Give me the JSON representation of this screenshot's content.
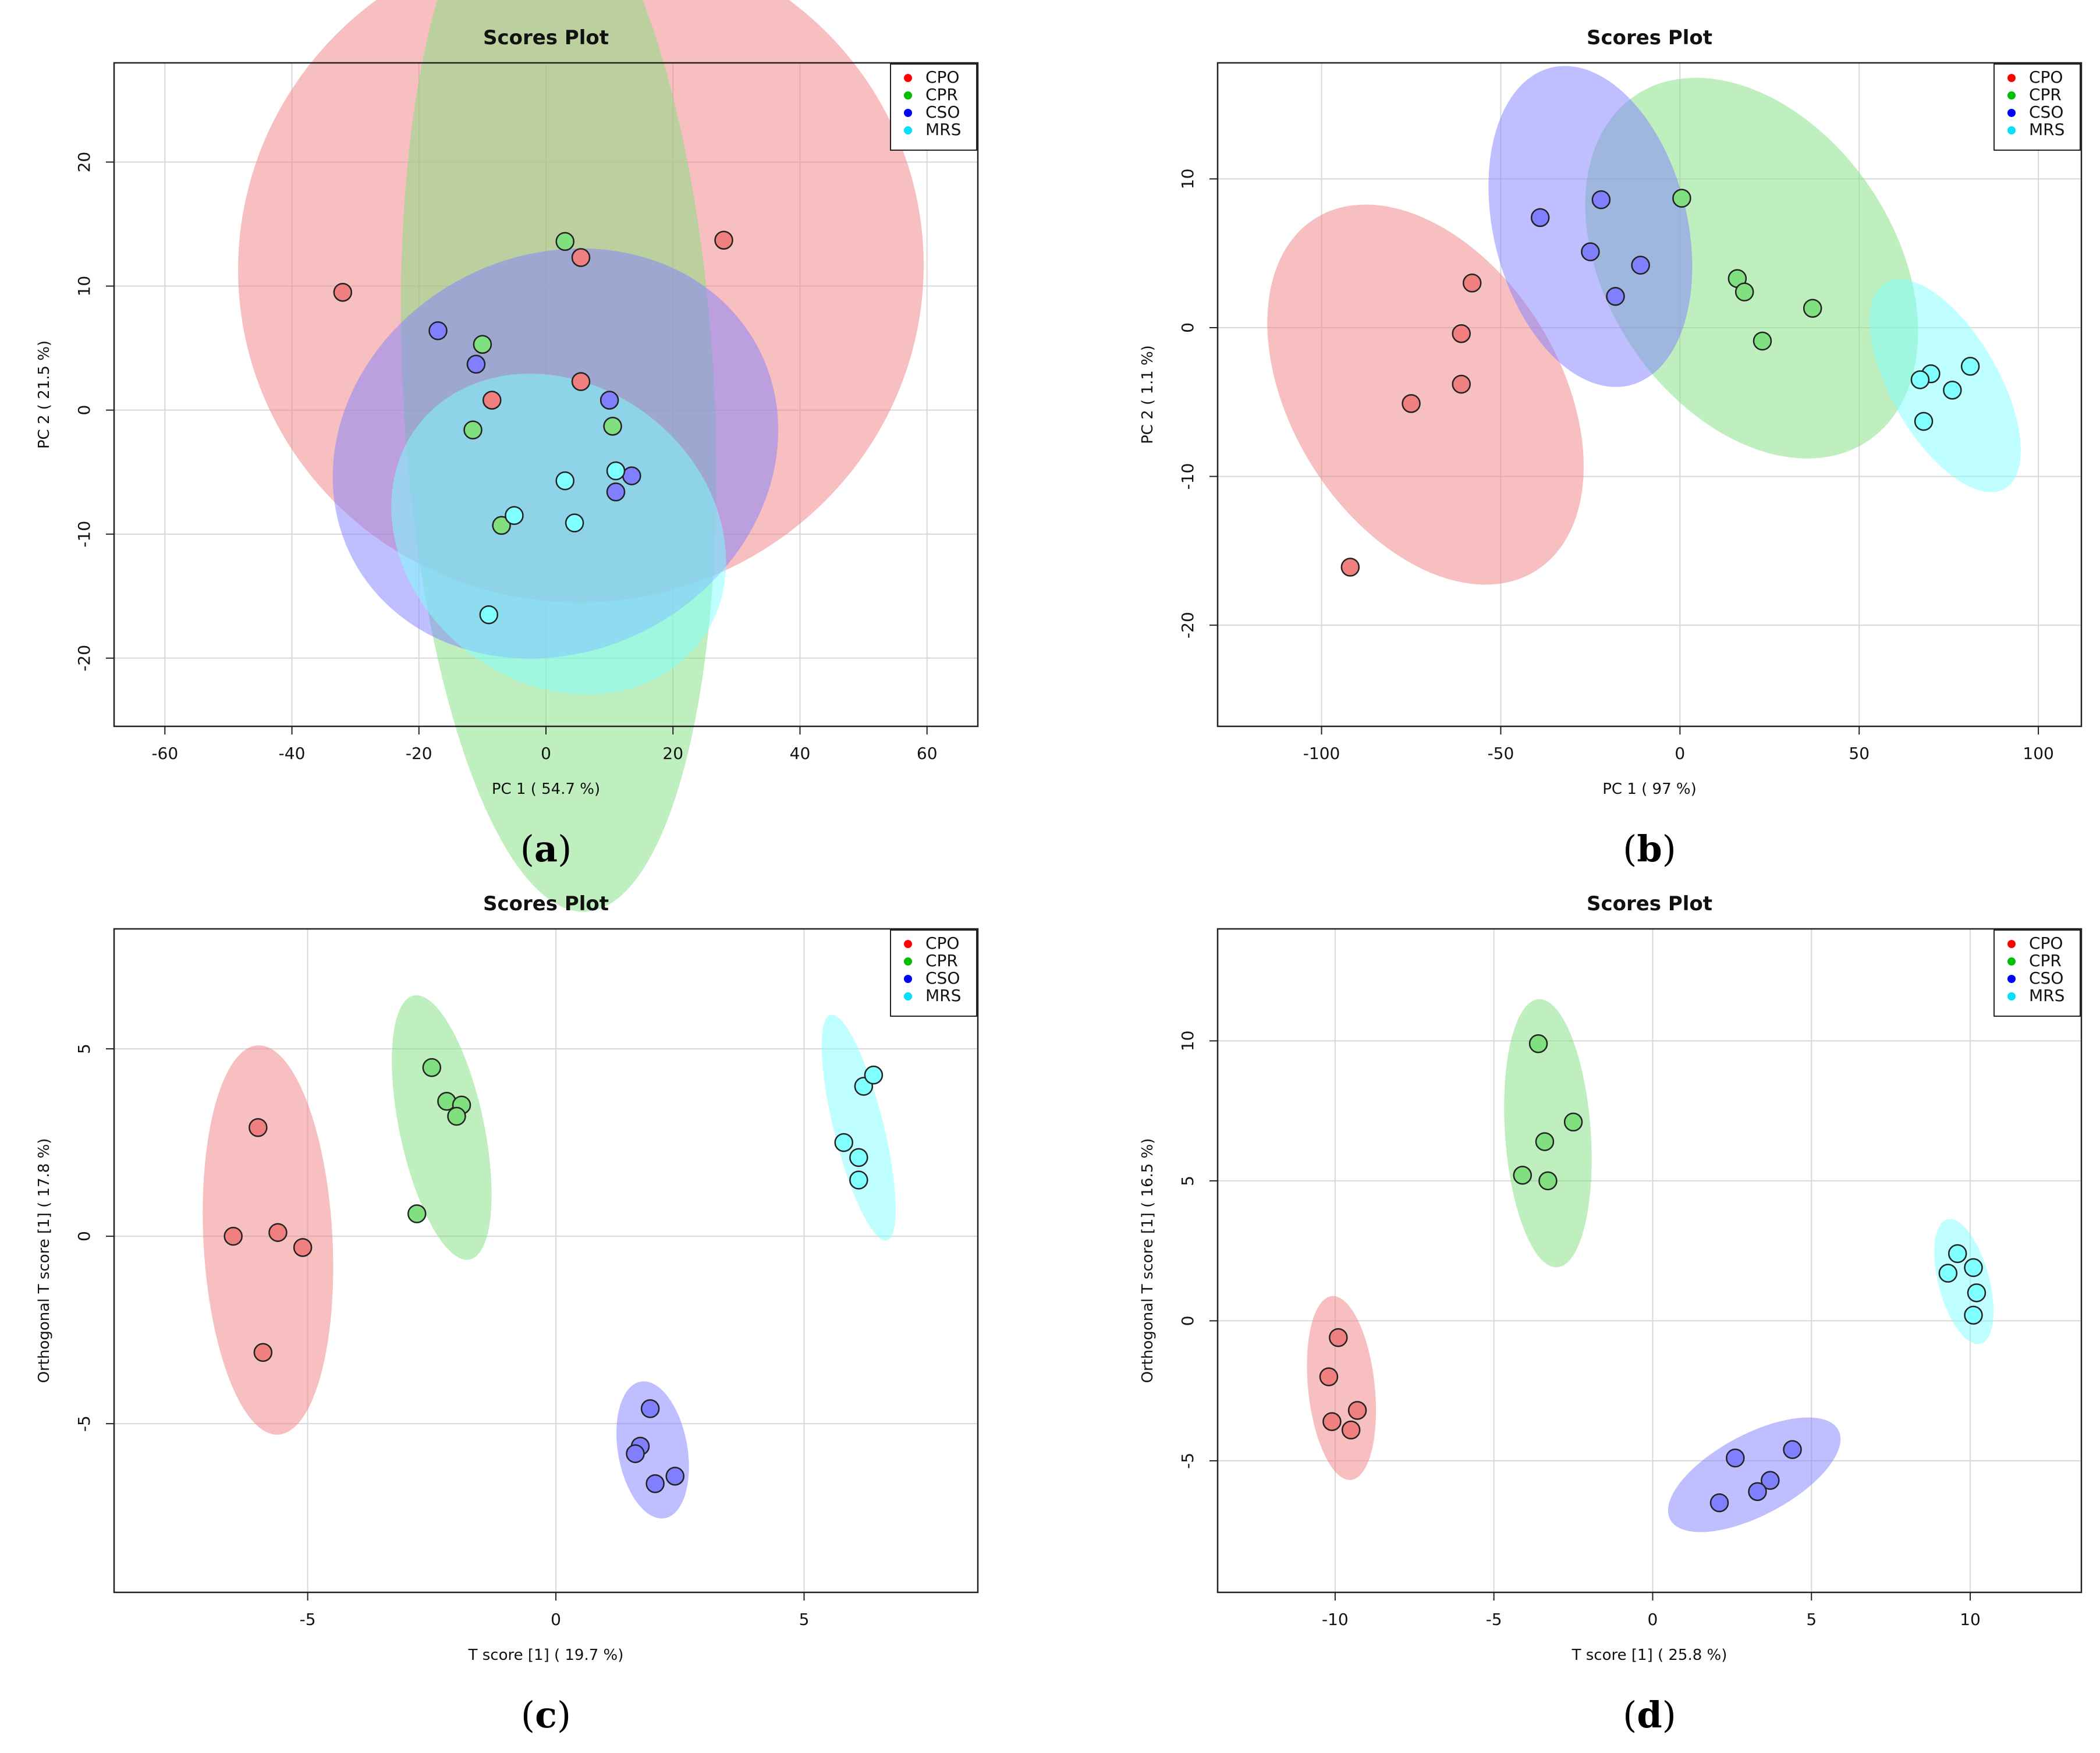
{
  "chart_data": [
    {
      "panel_label": "a",
      "type": "scatter",
      "title": "Scores Plot",
      "xlabel": "PC 1 ( 54.7 %)",
      "ylabel": "PC 2 ( 21.5 %)",
      "xlim": [
        -68,
        68
      ],
      "ylim": [
        -25.5,
        28
      ],
      "xticks": [
        -60,
        -40,
        -20,
        0,
        20,
        40,
        60
      ],
      "yticks": [
        -20,
        -10,
        0,
        10,
        20
      ],
      "grid": true,
      "legend_position": "top-right",
      "series": [
        {
          "name": "CPO",
          "color": "#ff0000",
          "fill": "#f08080",
          "points": [
            [
              -32,
              9.5
            ],
            [
              5.5,
              12.3
            ],
            [
              28,
              13.7
            ],
            [
              -8.5,
              0.8
            ],
            [
              5.5,
              2.3
            ]
          ],
          "ellipse": {
            "cx": 5.5,
            "cy": 11.5,
            "rx": 54,
            "ry": 27,
            "angle": -8
          }
        },
        {
          "name": "CPR",
          "color": "#00c000",
          "fill": "#80e080",
          "points": [
            [
              3,
              13.6
            ],
            [
              -10,
              5.3
            ],
            [
              -11.5,
              -1.6
            ],
            [
              10.5,
              -1.3
            ],
            [
              -7,
              -9.3
            ]
          ],
          "ellipse": {
            "cx": 2,
            "cy": 1.5,
            "rx": 24.5,
            "ry": 42,
            "angle": -3
          }
        },
        {
          "name": "CSO",
          "color": "#0000ff",
          "fill": "#8080ff",
          "points": [
            [
              -17,
              6.4
            ],
            [
              -11,
              3.7
            ],
            [
              10,
              0.8
            ],
            [
              13.5,
              -5.3
            ],
            [
              11,
              -6.6
            ]
          ],
          "ellipse": {
            "cx": 1.5,
            "cy": -3.5,
            "rx": 36,
            "ry": 16,
            "angle": -27
          }
        },
        {
          "name": "MRS",
          "color": "#00e0ff",
          "fill": "#80ffff",
          "points": [
            [
              3,
              -5.7
            ],
            [
              11,
              -4.9
            ],
            [
              -5,
              -8.5
            ],
            [
              4.5,
              -9.1
            ],
            [
              -9,
              -16.5
            ]
          ],
          "ellipse": {
            "cx": 2,
            "cy": -10,
            "rx": 28,
            "ry": 12,
            "angle": 38
          }
        }
      ]
    },
    {
      "panel_label": "b",
      "type": "scatter",
      "title": "Scores Plot",
      "xlabel": "PC 1 ( 97 %)",
      "ylabel": "PC 2 ( 1.1 %)",
      "xlim": [
        -129,
        112
      ],
      "ylim": [
        -26.8,
        17.8
      ],
      "xticks": [
        -100,
        -50,
        0,
        50,
        100
      ],
      "yticks": [
        -20,
        -10,
        0,
        10
      ],
      "grid": true,
      "legend_position": "top-right",
      "series": [
        {
          "name": "CPO",
          "color": "#ff0000",
          "fill": "#f08080",
          "points": [
            [
              -58,
              3
            ],
            [
              -61,
              -0.4
            ],
            [
              -61,
              -3.8
            ],
            [
              -75,
              -5.1
            ],
            [
              -92,
              -16.1
            ]
          ],
          "ellipse": {
            "cx": -71,
            "cy": -4.5,
            "rx": 58,
            "ry": 9,
            "angle": 58
          }
        },
        {
          "name": "CPR",
          "color": "#00c000",
          "fill": "#80e080",
          "points": [
            [
              0.5,
              8.7
            ],
            [
              16,
              3.3
            ],
            [
              18,
              2.4
            ],
            [
              37,
              1.3
            ],
            [
              23,
              -0.9
            ]
          ],
          "ellipse": {
            "cx": 20,
            "cy": 4,
            "rx": 40,
            "ry": 14,
            "angle": -34
          }
        },
        {
          "name": "CSO",
          "color": "#0000ff",
          "fill": "#8080ff",
          "points": [
            [
              -39,
              7.4
            ],
            [
              -22,
              8.6
            ],
            [
              -25,
              5.1
            ],
            [
              -11,
              4.2
            ],
            [
              -18,
              2.1
            ]
          ],
          "ellipse": {
            "cx": -25,
            "cy": 6.8,
            "rx": 27,
            "ry": 11,
            "angle": -14
          }
        },
        {
          "name": "MRS",
          "color": "#00e0ff",
          "fill": "#80ffff",
          "points": [
            [
              70,
              -3.1
            ],
            [
              81,
              -2.6
            ],
            [
              67,
              -3.5
            ],
            [
              76,
              -4.2
            ],
            [
              68,
              -6.3
            ]
          ],
          "ellipse": {
            "cx": 74,
            "cy": -3.9,
            "rx": 15,
            "ry": 8,
            "angle": -30
          }
        }
      ]
    },
    {
      "panel_label": "c",
      "type": "scatter",
      "title": "Scores Plot",
      "xlabel": "T score [1] ( 19.7 %)",
      "ylabel": "Orthogonal T score [1] ( 17.8 %)",
      "xlim": [
        -8.9,
        8.5
      ],
      "ylim": [
        -9.5,
        8.2
      ],
      "xticks": [
        -5,
        0,
        5
      ],
      "yticks": [
        -5,
        0,
        5
      ],
      "grid": true,
      "legend_position": "top-right",
      "series": [
        {
          "name": "CPO",
          "color": "#ff0000",
          "fill": "#f08080",
          "points": [
            [
              -6,
              2.9
            ],
            [
              -6.5,
              0
            ],
            [
              -5.6,
              0.1
            ],
            [
              -5.1,
              -0.3
            ],
            [
              -5.9,
              -3.1
            ]
          ],
          "ellipse": {
            "cx": -5.8,
            "cy": -0.1,
            "rx": 1.3,
            "ry": 5.2,
            "angle": -3
          }
        },
        {
          "name": "CPR",
          "color": "#00c000",
          "fill": "#80e080",
          "points": [
            [
              -2.5,
              4.5
            ],
            [
              -2.2,
              3.6
            ],
            [
              -1.9,
              3.5
            ],
            [
              -2,
              3.2
            ],
            [
              -2.8,
              0.6
            ]
          ],
          "ellipse": {
            "cx": -2.3,
            "cy": 2.9,
            "rx": 0.85,
            "ry": 3.6,
            "angle": -12
          }
        },
        {
          "name": "CSO",
          "color": "#0000ff",
          "fill": "#8080ff",
          "points": [
            [
              1.9,
              -4.6
            ],
            [
              1.7,
              -5.6
            ],
            [
              1.6,
              -5.8
            ],
            [
              2,
              -6.6
            ],
            [
              2.4,
              -6.4
            ]
          ],
          "ellipse": {
            "cx": 1.95,
            "cy": -5.7,
            "rx": 0.7,
            "ry": 1.85,
            "angle": -10
          }
        },
        {
          "name": "MRS",
          "color": "#00e0ff",
          "fill": "#80ffff",
          "points": [
            [
              6.2,
              4
            ],
            [
              6.4,
              4.3
            ],
            [
              5.8,
              2.5
            ],
            [
              6.1,
              2.1
            ],
            [
              6.1,
              1.5
            ]
          ],
          "ellipse": {
            "cx": 6.1,
            "cy": 2.9,
            "rx": 0.5,
            "ry": 3.1,
            "angle": -14
          }
        }
      ]
    },
    {
      "panel_label": "d",
      "type": "scatter",
      "title": "Scores Plot",
      "xlabel": "T score [1] ( 25.8 %)",
      "ylabel": "Orthogonal T score [1] ( 16.5 %)",
      "xlim": [
        -13.7,
        13.5
      ],
      "ylim": [
        -9.7,
        14
      ],
      "xticks": [
        -10,
        -5,
        0,
        5,
        10
      ],
      "yticks": [
        -5,
        0,
        5,
        10
      ],
      "grid": true,
      "legend_position": "top-right",
      "series": [
        {
          "name": "CPO",
          "color": "#ff0000",
          "fill": "#f08080",
          "points": [
            [
              -9.9,
              -0.6
            ],
            [
              -10.2,
              -2
            ],
            [
              -10.1,
              -3.6
            ],
            [
              -9.3,
              -3.2
            ],
            [
              -9.5,
              -3.9
            ]
          ],
          "ellipse": {
            "cx": -9.8,
            "cy": -2.4,
            "rx": 1.05,
            "ry": 3.3,
            "angle": -6
          }
        },
        {
          "name": "CPR",
          "color": "#00c000",
          "fill": "#80e080",
          "points": [
            [
              -3.6,
              9.9
            ],
            [
              -2.5,
              7.1
            ],
            [
              -3.4,
              6.4
            ],
            [
              -4.1,
              5.2
            ],
            [
              -3.3,
              5
            ]
          ],
          "ellipse": {
            "cx": -3.3,
            "cy": 6.7,
            "rx": 1.35,
            "ry": 4.8,
            "angle": -4
          }
        },
        {
          "name": "CSO",
          "color": "#0000ff",
          "fill": "#8080ff",
          "points": [
            [
              4.4,
              -4.6
            ],
            [
              2.6,
              -4.9
            ],
            [
              3.7,
              -5.7
            ],
            [
              3.3,
              -6.1
            ],
            [
              2.1,
              -6.5
            ]
          ],
          "ellipse": {
            "cx": 3.2,
            "cy": -5.5,
            "rx": 3,
            "ry": 1.45,
            "angle": -28
          }
        },
        {
          "name": "MRS",
          "color": "#00e0ff",
          "fill": "#80ffff",
          "points": [
            [
              9.6,
              2.4
            ],
            [
              9.3,
              1.7
            ],
            [
              10.1,
              1.9
            ],
            [
              10.2,
              1
            ],
            [
              10.1,
              0.2
            ]
          ],
          "ellipse": {
            "cx": 9.8,
            "cy": 1.4,
            "rx": 0.8,
            "ry": 2.3,
            "angle": -15
          }
        }
      ]
    }
  ]
}
